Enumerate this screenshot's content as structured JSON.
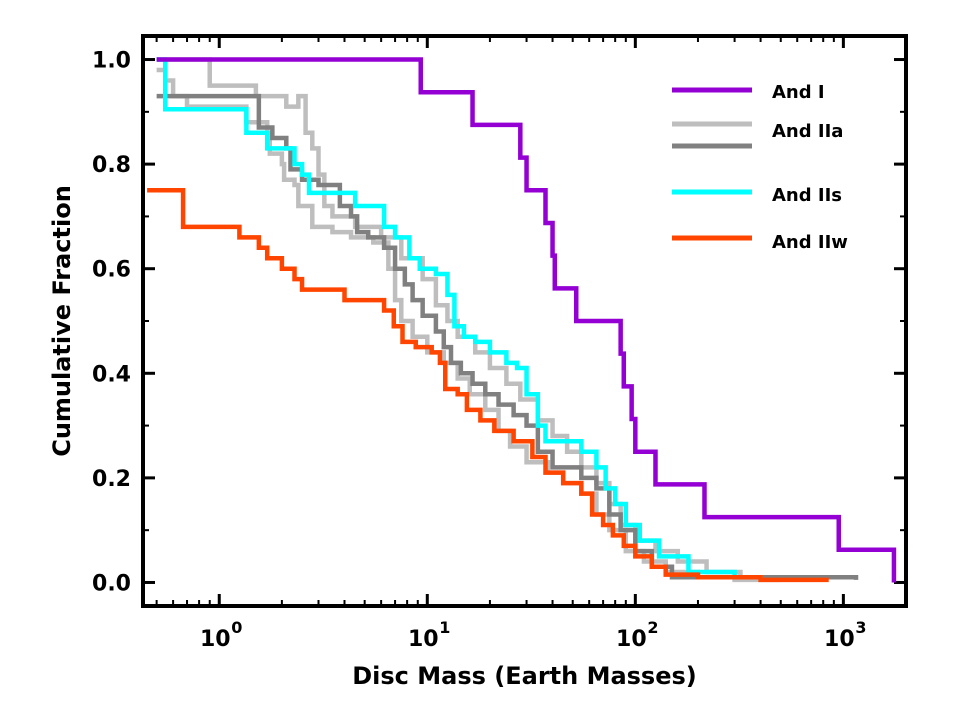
{
  "chart_data": {
    "type": "line",
    "xscale": "log",
    "xlabel": "Disc Mass (Earth Masses)",
    "ylabel": "Cumulative Fraction",
    "xlim": [
      0.43,
      2000
    ],
    "ylim": [
      -0.045,
      1.045
    ],
    "y_ticks": [
      0.0,
      0.2,
      0.4,
      0.6,
      0.8,
      1.0
    ],
    "y_tick_labels": [
      "0.0",
      "0.2",
      "0.4",
      "0.6",
      "0.8",
      "1.0"
    ],
    "x_ticks": [
      1,
      10,
      100,
      1000
    ],
    "x_tick_labels": [
      {
        "base": "10",
        "exp": "0"
      },
      {
        "base": "10",
        "exp": "1"
      },
      {
        "base": "10",
        "exp": "2"
      },
      {
        "base": "10",
        "exp": "3"
      }
    ],
    "legend_position": "top-right",
    "series": [
      {
        "name": "And I",
        "color": "#9400d3",
        "style": "step",
        "points": [
          [
            0.5,
            1.0
          ],
          [
            9.3,
            1.0
          ],
          [
            9.3,
            0.9375
          ],
          [
            16.5,
            0.9375
          ],
          [
            16.5,
            0.875
          ],
          [
            28,
            0.875
          ],
          [
            28,
            0.8125
          ],
          [
            30,
            0.8125
          ],
          [
            30,
            0.75
          ],
          [
            37,
            0.75
          ],
          [
            37,
            0.6875
          ],
          [
            40,
            0.6875
          ],
          [
            40,
            0.625
          ],
          [
            41,
            0.625
          ],
          [
            41,
            0.5625
          ],
          [
            52,
            0.5625
          ],
          [
            52,
            0.5
          ],
          [
            85,
            0.5
          ],
          [
            85,
            0.4375
          ],
          [
            88,
            0.4375
          ],
          [
            88,
            0.375
          ],
          [
            96,
            0.375
          ],
          [
            96,
            0.3125
          ],
          [
            100,
            0.3125
          ],
          [
            100,
            0.25
          ],
          [
            125,
            0.25
          ],
          [
            125,
            0.1875
          ],
          [
            215,
            0.1875
          ],
          [
            215,
            0.125
          ],
          [
            950,
            0.125
          ],
          [
            950,
            0.0625
          ],
          [
            1750,
            0.0625
          ],
          [
            1750,
            0.0
          ]
        ]
      },
      {
        "name": "And IIa",
        "color": "#bebebe",
        "style": "step",
        "points": [
          [
            0.5,
            0.98
          ],
          [
            0.55,
            0.96
          ],
          [
            0.6,
            0.93
          ],
          [
            0.7,
            0.91
          ],
          [
            1.3,
            0.91
          ],
          [
            1.35,
            0.88
          ],
          [
            1.7,
            0.86
          ],
          [
            1.75,
            0.82
          ],
          [
            2.0,
            0.8
          ],
          [
            2.05,
            0.77
          ],
          [
            2.3,
            0.76
          ],
          [
            2.4,
            0.72
          ],
          [
            2.8,
            0.68
          ],
          [
            3.5,
            0.67
          ],
          [
            4.3,
            0.66
          ],
          [
            5.5,
            0.65
          ],
          [
            6.5,
            0.6
          ],
          [
            7.0,
            0.54
          ],
          [
            7.5,
            0.5
          ],
          [
            8.5,
            0.47
          ],
          [
            10,
            0.44
          ],
          [
            12,
            0.42
          ],
          [
            14,
            0.39
          ],
          [
            16,
            0.36
          ],
          [
            19,
            0.33
          ],
          [
            22,
            0.29
          ],
          [
            25,
            0.26
          ],
          [
            30,
            0.23
          ],
          [
            38,
            0.21
          ],
          [
            45,
            0.19
          ],
          [
            55,
            0.17
          ],
          [
            65,
            0.13
          ],
          [
            75,
            0.1
          ],
          [
            90,
            0.06
          ],
          [
            110,
            0.04
          ],
          [
            140,
            0.02
          ],
          [
            200,
            0.01
          ],
          [
            300,
            0.005
          ],
          [
            500,
            0.005
          ]
        ]
      },
      {
        "name": "And IIa",
        "color": "#bebebe",
        "style": "step",
        "points": [
          [
            0.5,
            1.0
          ],
          [
            0.9,
            1.0
          ],
          [
            0.9,
            0.95
          ],
          [
            1.3,
            0.95
          ],
          [
            1.5,
            0.93
          ],
          [
            1.9,
            0.93
          ],
          [
            2.1,
            0.91
          ],
          [
            2.4,
            0.93
          ],
          [
            2.6,
            0.86
          ],
          [
            2.8,
            0.83
          ],
          [
            3.0,
            0.78
          ],
          [
            3.2,
            0.72
          ],
          [
            3.5,
            0.7
          ],
          [
            4.5,
            0.68
          ],
          [
            6,
            0.66
          ],
          [
            7.5,
            0.62
          ],
          [
            9.5,
            0.58
          ],
          [
            11,
            0.53
          ],
          [
            12.5,
            0.5
          ],
          [
            14,
            0.47
          ],
          [
            17,
            0.44
          ],
          [
            20,
            0.41
          ],
          [
            24,
            0.38
          ],
          [
            28,
            0.35
          ],
          [
            34,
            0.31
          ],
          [
            40,
            0.28
          ],
          [
            47,
            0.25
          ],
          [
            55,
            0.22
          ],
          [
            65,
            0.19
          ],
          [
            75,
            0.15
          ],
          [
            85,
            0.11
          ],
          [
            100,
            0.08
          ],
          [
            125,
            0.06
          ],
          [
            160,
            0.04
          ],
          [
            220,
            0.02
          ],
          [
            320,
            0.01
          ],
          [
            500,
            0.005
          ]
        ]
      },
      {
        "name": "And IIa",
        "color": "#808080",
        "style": "step",
        "points": [
          [
            0.5,
            0.93
          ],
          [
            0.68,
            0.93
          ],
          [
            0.68,
            0.93
          ],
          [
            1.55,
            0.93
          ],
          [
            1.55,
            0.87
          ],
          [
            1.8,
            0.85
          ],
          [
            2.1,
            0.83
          ],
          [
            2.2,
            0.79
          ],
          [
            2.5,
            0.77
          ],
          [
            3.0,
            0.76
          ],
          [
            3.8,
            0.72
          ],
          [
            4.3,
            0.7
          ],
          [
            4.6,
            0.67
          ],
          [
            5.2,
            0.66
          ],
          [
            6.2,
            0.64
          ],
          [
            7.0,
            0.6
          ],
          [
            7.8,
            0.57
          ],
          [
            8.5,
            0.54
          ],
          [
            9.5,
            0.51
          ],
          [
            11,
            0.48
          ],
          [
            12,
            0.45
          ],
          [
            13,
            0.42
          ],
          [
            14.5,
            0.4
          ],
          [
            16.5,
            0.38
          ],
          [
            19,
            0.36
          ],
          [
            22,
            0.34
          ],
          [
            26,
            0.32
          ],
          [
            30,
            0.3
          ],
          [
            34,
            0.25
          ],
          [
            40,
            0.22
          ],
          [
            55,
            0.2
          ],
          [
            65,
            0.18
          ],
          [
            75,
            0.13
          ],
          [
            85,
            0.1
          ],
          [
            100,
            0.06
          ],
          [
            120,
            0.03
          ],
          [
            150,
            0.01
          ],
          [
            300,
            0.01
          ],
          [
            1150,
            0.005
          ]
        ]
      },
      {
        "name": "And IIs",
        "color": "#00ffff",
        "style": "step",
        "points": [
          [
            0.5,
            1.0
          ],
          [
            0.55,
            1.0
          ],
          [
            0.55,
            0.905
          ],
          [
            1.35,
            0.905
          ],
          [
            1.35,
            0.86
          ],
          [
            1.7,
            0.86
          ],
          [
            1.7,
            0.83
          ],
          [
            2.0,
            0.83
          ],
          [
            2.3,
            0.8
          ],
          [
            2.5,
            0.78
          ],
          [
            2.7,
            0.745
          ],
          [
            3.6,
            0.745
          ],
          [
            4.5,
            0.72
          ],
          [
            5.7,
            0.72
          ],
          [
            6.2,
            0.68
          ],
          [
            7,
            0.66
          ],
          [
            8.2,
            0.62
          ],
          [
            9.2,
            0.6
          ],
          [
            11,
            0.59
          ],
          [
            12.5,
            0.55
          ],
          [
            13.5,
            0.49
          ],
          [
            15,
            0.47
          ],
          [
            17,
            0.46
          ],
          [
            20,
            0.44
          ],
          [
            24,
            0.42
          ],
          [
            27,
            0.41
          ],
          [
            30,
            0.36
          ],
          [
            34,
            0.3
          ],
          [
            37,
            0.27
          ],
          [
            45,
            0.27
          ],
          [
            55,
            0.25
          ],
          [
            65,
            0.22
          ],
          [
            72,
            0.18
          ],
          [
            80,
            0.15
          ],
          [
            90,
            0.11
          ],
          [
            105,
            0.08
          ],
          [
            130,
            0.05
          ],
          [
            180,
            0.02
          ],
          [
            300,
            0.01
          ],
          [
            400,
            0.005
          ]
        ]
      },
      {
        "name": "And IIw",
        "color": "#ff4500",
        "style": "step",
        "points": [
          [
            0.45,
            0.75
          ],
          [
            0.67,
            0.75
          ],
          [
            0.67,
            0.68
          ],
          [
            1.25,
            0.68
          ],
          [
            1.25,
            0.66
          ],
          [
            1.55,
            0.64
          ],
          [
            1.7,
            0.62
          ],
          [
            2.0,
            0.6
          ],
          [
            2.3,
            0.58
          ],
          [
            2.5,
            0.56
          ],
          [
            3.4,
            0.56
          ],
          [
            4.0,
            0.54
          ],
          [
            5.0,
            0.54
          ],
          [
            6.2,
            0.52
          ],
          [
            6.9,
            0.49
          ],
          [
            7.6,
            0.46
          ],
          [
            8.8,
            0.45
          ],
          [
            10.5,
            0.44
          ],
          [
            11.5,
            0.42
          ],
          [
            12.2,
            0.37
          ],
          [
            14,
            0.36
          ],
          [
            15.5,
            0.33
          ],
          [
            18,
            0.31
          ],
          [
            21,
            0.29
          ],
          [
            26,
            0.27
          ],
          [
            32,
            0.24
          ],
          [
            37,
            0.21
          ],
          [
            45,
            0.19
          ],
          [
            55,
            0.17
          ],
          [
            62,
            0.13
          ],
          [
            70,
            0.11
          ],
          [
            78,
            0.09
          ],
          [
            88,
            0.07
          ],
          [
            100,
            0.05
          ],
          [
            120,
            0.03
          ],
          [
            140,
            0.015
          ],
          [
            200,
            0.01
          ],
          [
            400,
            0.005
          ],
          [
            850,
            0.005
          ]
        ]
      }
    ],
    "legend": [
      {
        "label": "And I",
        "colors": [
          "#9400d3"
        ]
      },
      {
        "label": "And IIa",
        "colors": [
          "#bebebe",
          "#808080"
        ]
      },
      {
        "label": "And IIs",
        "colors": [
          "#00ffff"
        ]
      },
      {
        "label": "And IIw",
        "colors": [
          "#ff4500"
        ]
      }
    ]
  }
}
